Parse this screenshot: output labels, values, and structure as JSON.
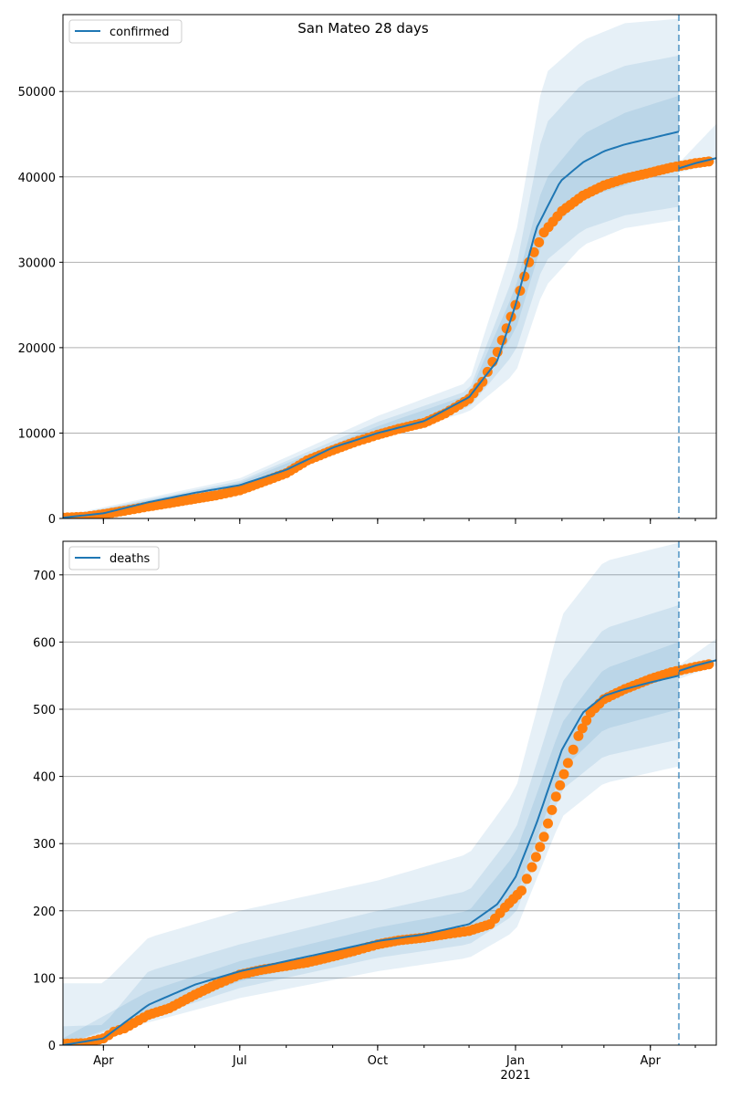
{
  "title": "San Mateo 28 days",
  "colors": {
    "line": "#1f77b4",
    "points": "#ff7f0e",
    "band": "#1f77b4",
    "grid": "#b0b0b0",
    "vline": "#1f77b4"
  },
  "x_axis": {
    "ticks": [
      {
        "date": "2020-04-01",
        "label": "Apr"
      },
      {
        "date": "2020-07-01",
        "label": "Jul"
      },
      {
        "date": "2020-10-01",
        "label": "Oct"
      },
      {
        "date": "2021-01-01",
        "label": "Jan"
      },
      {
        "date": "2021-04-01",
        "label": "Apr"
      }
    ],
    "year_label": "2021",
    "range": [
      "2020-03-05",
      "2021-05-15"
    ]
  },
  "chart_data": [
    {
      "type": "line",
      "legend": "confirmed",
      "legend_position": "top-left",
      "grid": "y",
      "ylim": [
        0,
        59000
      ],
      "yticks": [
        0,
        10000,
        20000,
        30000,
        40000,
        50000
      ],
      "forecast_start": "2021-04-20",
      "model_line": [
        [
          "2020-03-05",
          100
        ],
        [
          "2020-04-01",
          600
        ],
        [
          "2020-05-01",
          1900
        ],
        [
          "2020-06-01",
          3000
        ],
        [
          "2020-07-01",
          3900
        ],
        [
          "2020-08-01",
          5700
        ],
        [
          "2020-09-01",
          8300
        ],
        [
          "2020-10-01",
          10000
        ],
        [
          "2020-11-01",
          11400
        ],
        [
          "2020-12-01",
          14200
        ],
        [
          "2020-12-20",
          18500
        ],
        [
          "2021-01-01",
          25000
        ],
        [
          "2021-01-15",
          34000
        ],
        [
          "2021-01-31",
          39500
        ],
        [
          "2021-02-15",
          41700
        ],
        [
          "2021-03-01",
          43000
        ],
        [
          "2021-03-15",
          43800
        ],
        [
          "2021-04-01",
          44500
        ],
        [
          "2021-04-20",
          45300
        ]
      ],
      "projection_line": [
        [
          "2021-04-20",
          41000
        ],
        [
          "2021-05-01",
          41600
        ],
        [
          "2021-05-15",
          42200
        ]
      ],
      "observed": [
        [
          "2020-03-05",
          100
        ],
        [
          "2020-03-20",
          200
        ],
        [
          "2020-04-01",
          500
        ],
        [
          "2020-04-15",
          900
        ],
        [
          "2020-05-01",
          1400
        ],
        [
          "2020-05-15",
          1800
        ],
        [
          "2020-06-01",
          2300
        ],
        [
          "2020-06-15",
          2700
        ],
        [
          "2020-07-01",
          3300
        ],
        [
          "2020-07-15",
          4200
        ],
        [
          "2020-08-01",
          5300
        ],
        [
          "2020-08-15",
          6800
        ],
        [
          "2020-09-01",
          8000
        ],
        [
          "2020-09-15",
          8900
        ],
        [
          "2020-10-01",
          9800
        ],
        [
          "2020-10-15",
          10500
        ],
        [
          "2020-11-01",
          11200
        ],
        [
          "2020-11-15",
          12300
        ],
        [
          "2020-12-01",
          14000
        ],
        [
          "2020-12-10",
          16000
        ],
        [
          "2020-12-20",
          19500
        ],
        [
          "2021-01-01",
          25000
        ],
        [
          "2021-01-10",
          30000
        ],
        [
          "2021-01-20",
          33500
        ],
        [
          "2021-02-01",
          36000
        ],
        [
          "2021-02-15",
          37800
        ],
        [
          "2021-03-01",
          39000
        ],
        [
          "2021-03-15",
          39800
        ],
        [
          "2021-04-01",
          40500
        ],
        [
          "2021-04-15",
          41100
        ],
        [
          "2021-05-01",
          41600
        ],
        [
          "2021-05-10",
          41800
        ]
      ],
      "bands": [
        {
          "from": "2020-03-05",
          "to": "2021-04-20",
          "lower": [
            [
              "2020-03-05",
              0
            ],
            [
              "2020-07-01",
              3300
            ],
            [
              "2020-10-01",
              9500
            ],
            [
              "2020-12-01",
              12500
            ],
            [
              "2021-01-01",
              17000
            ],
            [
              "2021-01-20",
              27000
            ],
            [
              "2021-02-15",
              32000
            ],
            [
              "2021-03-15",
              34000
            ],
            [
              "2021-04-20",
              35000
            ]
          ],
          "upper": [
            [
              "2020-03-05",
              300
            ],
            [
              "2020-07-01",
              4700
            ],
            [
              "2020-10-01",
              12000
            ],
            [
              "2020-12-01",
              16000
            ],
            [
              "2021-01-01",
              33000
            ],
            [
              "2021-01-20",
              52000
            ],
            [
              "2021-02-15",
              56000
            ],
            [
              "2021-03-15",
              58000
            ],
            [
              "2021-04-20",
              58500
            ]
          ]
        },
        {
          "from": "2020-03-05",
          "to": "2021-04-20",
          "lower": [
            [
              "2020-03-05",
              0
            ],
            [
              "2020-07-01",
              3500
            ],
            [
              "2020-10-01",
              9800
            ],
            [
              "2020-12-01",
              13000
            ],
            [
              "2021-01-01",
              19500
            ],
            [
              "2021-01-20",
              30000
            ],
            [
              "2021-02-15",
              33800
            ],
            [
              "2021-03-15",
              35500
            ],
            [
              "2021-04-20",
              36500
            ]
          ],
          "upper": [
            [
              "2020-03-05",
              200
            ],
            [
              "2020-07-01",
              4400
            ],
            [
              "2020-10-01",
              11300
            ],
            [
              "2020-12-01",
              15000
            ],
            [
              "2021-01-01",
              29000
            ],
            [
              "2021-01-20",
              46000
            ],
            [
              "2021-02-15",
              51000
            ],
            [
              "2021-03-15",
              53000
            ],
            [
              "2021-04-20",
              54200
            ]
          ]
        },
        {
          "from": "2020-03-05",
          "to": "2021-04-20",
          "lower": [
            [
              "2020-03-05",
              50
            ],
            [
              "2020-07-01",
              3700
            ],
            [
              "2020-10-01",
              10100
            ],
            [
              "2020-12-01",
              13500
            ],
            [
              "2021-01-01",
              22000
            ],
            [
              "2021-01-20",
              33000
            ],
            [
              "2021-02-15",
              37500
            ],
            [
              "2021-03-15",
              39000
            ],
            [
              "2021-04-20",
              41500
            ]
          ],
          "upper": [
            [
              "2020-03-05",
              150
            ],
            [
              "2020-07-01",
              4200
            ],
            [
              "2020-10-01",
              10800
            ],
            [
              "2020-12-01",
              14500
            ],
            [
              "2021-01-01",
              27000
            ],
            [
              "2021-01-20",
              39500
            ],
            [
              "2021-02-15",
              45000
            ],
            [
              "2021-03-15",
              47500
            ],
            [
              "2021-04-20",
              49500
            ]
          ]
        },
        {
          "from": "2021-04-20",
          "to": "2021-05-15",
          "lower": [
            [
              "2021-04-20",
              40500
            ],
            [
              "2021-05-15",
              41600
            ]
          ],
          "upper": [
            [
              "2021-04-20",
              41600
            ],
            [
              "2021-05-15",
              46200
            ]
          ]
        }
      ]
    },
    {
      "type": "line",
      "legend": "deaths",
      "legend_position": "top-left",
      "grid": "y",
      "ylim": [
        0,
        750
      ],
      "yticks": [
        0,
        100,
        200,
        300,
        400,
        500,
        600,
        700
      ],
      "forecast_start": "2021-04-20",
      "model_line": [
        [
          "2020-03-05",
          0
        ],
        [
          "2020-04-01",
          10
        ],
        [
          "2020-05-01",
          60
        ],
        [
          "2020-06-01",
          90
        ],
        [
          "2020-07-01",
          110
        ],
        [
          "2020-08-01",
          125
        ],
        [
          "2020-09-01",
          140
        ],
        [
          "2020-10-01",
          155
        ],
        [
          "2020-11-01",
          165
        ],
        [
          "2020-12-01",
          180
        ],
        [
          "2020-12-20",
          210
        ],
        [
          "2021-01-01",
          250
        ],
        [
          "2021-01-15",
          330
        ],
        [
          "2021-02-01",
          440
        ],
        [
          "2021-02-15",
          495
        ],
        [
          "2021-03-01",
          520
        ],
        [
          "2021-03-15",
          530
        ],
        [
          "2021-04-01",
          540
        ],
        [
          "2021-04-20",
          550
        ]
      ],
      "projection_line": [
        [
          "2021-04-20",
          557
        ],
        [
          "2021-05-01",
          565
        ],
        [
          "2021-05-15",
          573
        ]
      ],
      "observed": [
        [
          "2020-03-05",
          2
        ],
        [
          "2020-03-20",
          3
        ],
        [
          "2020-04-01",
          10
        ],
        [
          "2020-04-08",
          20
        ],
        [
          "2020-04-15",
          25
        ],
        [
          "2020-05-01",
          45
        ],
        [
          "2020-05-15",
          55
        ],
        [
          "2020-06-01",
          75
        ],
        [
          "2020-06-15",
          90
        ],
        [
          "2020-07-01",
          105
        ],
        [
          "2020-07-15",
          112
        ],
        [
          "2020-08-01",
          118
        ],
        [
          "2020-08-15",
          123
        ],
        [
          "2020-09-01",
          132
        ],
        [
          "2020-09-15",
          140
        ],
        [
          "2020-10-01",
          150
        ],
        [
          "2020-10-15",
          156
        ],
        [
          "2020-11-01",
          160
        ],
        [
          "2020-11-15",
          165
        ],
        [
          "2020-12-01",
          170
        ],
        [
          "2020-12-15",
          180
        ],
        [
          "2020-12-25",
          205
        ],
        [
          "2021-01-05",
          230
        ],
        [
          "2021-01-12",
          265
        ],
        [
          "2021-01-20",
          310
        ],
        [
          "2021-01-28",
          370
        ],
        [
          "2021-02-05",
          420
        ],
        [
          "2021-02-12",
          460
        ],
        [
          "2021-02-20",
          495
        ],
        [
          "2021-03-01",
          515
        ],
        [
          "2021-03-15",
          530
        ],
        [
          "2021-04-01",
          545
        ],
        [
          "2021-04-15",
          555
        ],
        [
          "2021-05-01",
          563
        ],
        [
          "2021-05-10",
          567
        ]
      ],
      "bands": [
        {
          "from": "2020-03-05",
          "to": "2021-04-20",
          "lower": [
            [
              "2020-03-05",
              0
            ],
            [
              "2020-07-01",
              70
            ],
            [
              "2020-10-01",
              110
            ],
            [
              "2020-12-01",
              130
            ],
            [
              "2021-01-01",
              170
            ],
            [
              "2021-02-01",
              340
            ],
            [
              "2021-03-01",
              390
            ],
            [
              "2021-04-20",
              415
            ]
          ],
          "upper": [
            [
              "2020-03-05",
              92
            ],
            [
              "2020-04-01",
              92
            ],
            [
              "2020-05-01",
              160
            ],
            [
              "2020-07-01",
              200
            ],
            [
              "2020-10-01",
              245
            ],
            [
              "2020-12-01",
              285
            ],
            [
              "2021-01-01",
              380
            ],
            [
              "2021-02-01",
              640
            ],
            [
              "2021-03-01",
              720
            ],
            [
              "2021-04-20",
              748
            ]
          ]
        },
        {
          "from": "2020-03-05",
          "to": "2021-04-20",
          "lower": [
            [
              "2020-03-05",
              0
            ],
            [
              "2020-07-01",
              85
            ],
            [
              "2020-10-01",
              130
            ],
            [
              "2020-12-01",
              150
            ],
            [
              "2021-01-01",
              195
            ],
            [
              "2021-02-01",
              380
            ],
            [
              "2021-03-01",
              430
            ],
            [
              "2021-04-20",
              455
            ]
          ],
          "upper": [
            [
              "2020-03-05",
              28
            ],
            [
              "2020-04-01",
              30
            ],
            [
              "2020-05-01",
              110
            ],
            [
              "2020-07-01",
              150
            ],
            [
              "2020-10-01",
              200
            ],
            [
              "2020-12-01",
              230
            ],
            [
              "2021-01-01",
              320
            ],
            [
              "2021-02-01",
              540
            ],
            [
              "2021-03-01",
              620
            ],
            [
              "2021-04-20",
              655
            ]
          ]
        },
        {
          "from": "2020-03-05",
          "to": "2021-04-20",
          "lower": [
            [
              "2020-03-05",
              0
            ],
            [
              "2020-07-01",
              95
            ],
            [
              "2020-10-01",
              145
            ],
            [
              "2020-12-01",
              165
            ],
            [
              "2021-01-01",
              220
            ],
            [
              "2021-02-01",
              410
            ],
            [
              "2021-03-01",
              470
            ],
            [
              "2021-04-20",
              500
            ]
          ],
          "upper": [
            [
              "2020-03-05",
              10
            ],
            [
              "2020-05-01",
              80
            ],
            [
              "2020-07-01",
              125
            ],
            [
              "2020-10-01",
              175
            ],
            [
              "2020-12-01",
              200
            ],
            [
              "2021-01-01",
              285
            ],
            [
              "2021-02-01",
              480
            ],
            [
              "2021-03-01",
              560
            ],
            [
              "2021-04-20",
              600
            ]
          ]
        },
        {
          "from": "2021-04-20",
          "to": "2021-05-15",
          "lower": [
            [
              "2021-04-20",
              545
            ],
            [
              "2021-05-15",
              565
            ]
          ],
          "upper": [
            [
              "2021-04-20",
              565
            ],
            [
              "2021-05-15",
              605
            ]
          ]
        }
      ]
    }
  ]
}
